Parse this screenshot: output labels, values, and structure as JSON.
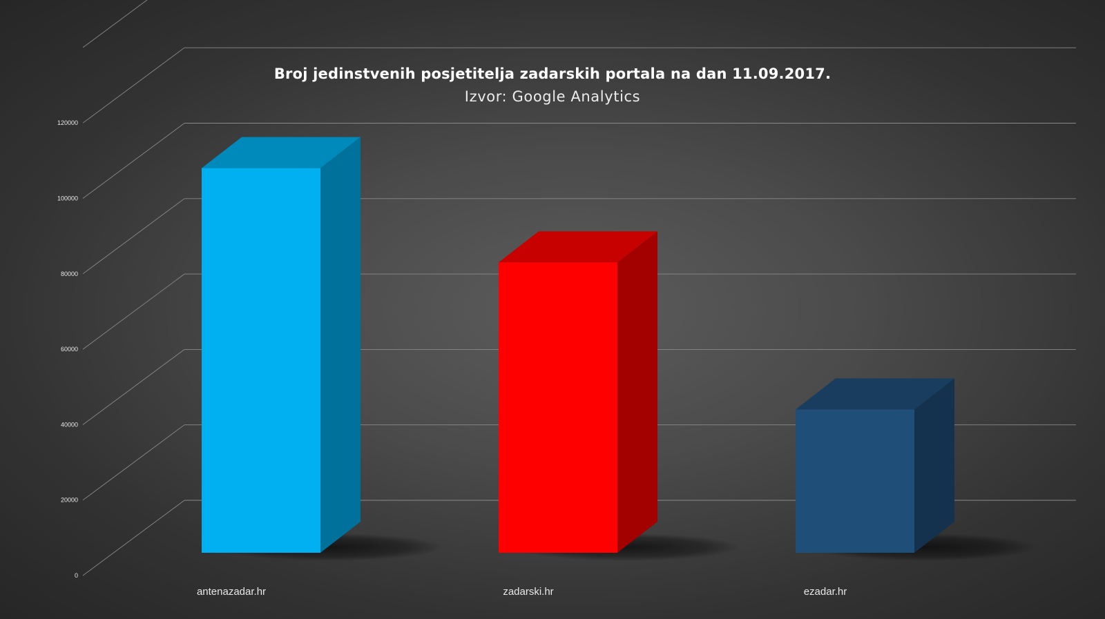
{
  "chart_data": {
    "type": "bar",
    "title": "Broj jedinstvenih posjetitelja zadarskih portala na dan 11.09.2017.",
    "subtitle": "Izvor: Google Analytics",
    "categories": [
      "antenazadar.hr",
      "zadarski.hr",
      "ezadar.hr"
    ],
    "values": [
      102000,
      77000,
      38000
    ],
    "bar_colors": [
      "#00b0f0",
      "#ff0000",
      "#1f4e79"
    ],
    "ylim": [
      0,
      120000
    ],
    "yticks": [
      "0",
      "20000",
      "40000",
      "60000",
      "80000",
      "100000",
      "120000"
    ],
    "grid": true,
    "style": "3d-column"
  }
}
